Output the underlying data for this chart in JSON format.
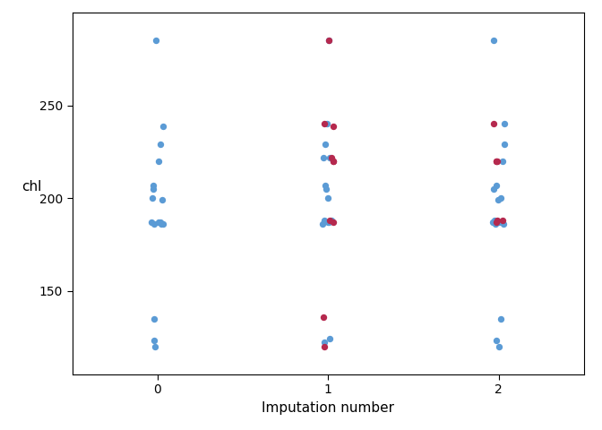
{
  "title": "",
  "xlabel": "Imputation number",
  "ylabel": "chl",
  "xlim": [
    -0.5,
    2.5
  ],
  "ylim": [
    105,
    300
  ],
  "yticks": [
    150,
    200,
    250
  ],
  "xticks": [
    0,
    1,
    2
  ],
  "background_color": "#ffffff",
  "blue_color": "#5b9bd5",
  "red_color": "#b5294e",
  "point_size": 28,
  "blue_points": {
    "0": [
      285,
      239,
      229,
      220,
      207,
      205,
      200,
      199,
      187,
      187,
      187,
      186,
      186,
      186,
      135,
      123,
      120
    ],
    "1": [
      285,
      240,
      229,
      222,
      222,
      207,
      205,
      200,
      188,
      188,
      187,
      187,
      186,
      124,
      122
    ],
    "2": [
      285,
      240,
      229,
      220,
      207,
      205,
      200,
      199,
      188,
      187,
      187,
      186,
      186,
      135,
      123,
      120
    ]
  },
  "red_points": {
    "0": [],
    "1": [
      285,
      240,
      239,
      222,
      220,
      220,
      188,
      187,
      136,
      120
    ],
    "2": [
      240,
      220,
      220,
      220,
      188,
      188,
      187
    ]
  },
  "jitter_seed": 42,
  "jitter_amount": 0.035
}
